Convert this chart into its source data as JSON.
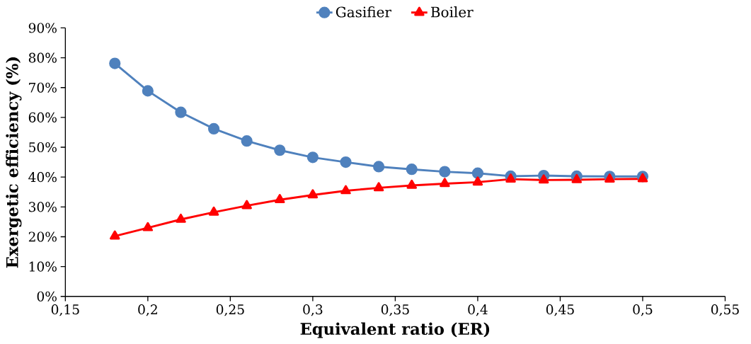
{
  "chart_data": {
    "type": "line",
    "xlabel": "Equivalent ratio (ER)",
    "ylabel": "Exergetic efficiency (%)",
    "x": [
      0.18,
      0.2,
      0.22,
      0.24,
      0.26,
      0.28,
      0.3,
      0.32,
      0.34,
      0.36,
      0.38,
      0.4,
      0.42,
      0.44,
      0.46,
      0.48,
      0.5
    ],
    "series": [
      {
        "name": "Gasifier",
        "color": "#4f81bd",
        "marker": "circle",
        "values": [
          78.1,
          68.9,
          61.7,
          56.2,
          52.1,
          49.0,
          46.6,
          45.0,
          43.5,
          42.6,
          41.8,
          41.3,
          40.3,
          40.5,
          40.3,
          40.2,
          40.2
        ]
      },
      {
        "name": "Boiler",
        "color": "#ff0000",
        "marker": "triangle",
        "values": [
          20.2,
          23.0,
          25.8,
          28.2,
          30.4,
          32.4,
          34.0,
          35.4,
          36.4,
          37.2,
          37.8,
          38.3,
          39.3,
          39.0,
          39.1,
          39.3,
          39.4
        ]
      }
    ],
    "xlim": [
      0.15,
      0.55
    ],
    "ylim": [
      0,
      90
    ],
    "xticks": [
      {
        "value": 0.15,
        "label": "0,15"
      },
      {
        "value": 0.2,
        "label": "0,2"
      },
      {
        "value": 0.25,
        "label": "0,25"
      },
      {
        "value": 0.3,
        "label": "0,3"
      },
      {
        "value": 0.35,
        "label": "0,35"
      },
      {
        "value": 0.4,
        "label": "0,4"
      },
      {
        "value": 0.45,
        "label": "0,45"
      },
      {
        "value": 0.5,
        "label": "0,5"
      },
      {
        "value": 0.55,
        "label": "0,55"
      }
    ],
    "yticks": [
      {
        "value": 0,
        "label": "0%"
      },
      {
        "value": 10,
        "label": "10%"
      },
      {
        "value": 20,
        "label": "20%"
      },
      {
        "value": 30,
        "label": "30%"
      },
      {
        "value": 40,
        "label": "40%"
      },
      {
        "value": 50,
        "label": "50%"
      },
      {
        "value": 60,
        "label": "60%"
      },
      {
        "value": 70,
        "label": "70%"
      },
      {
        "value": 80,
        "label": "80%"
      },
      {
        "value": 90,
        "label": "90%"
      }
    ],
    "grid": false,
    "legend": "top",
    "line_style": "solid"
  }
}
